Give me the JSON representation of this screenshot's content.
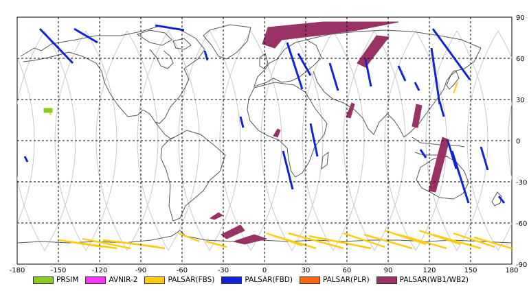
{
  "map": {
    "lon_ticks": [
      "-180",
      "-150",
      "-120",
      "-90",
      "-60",
      "-30",
      "0",
      "30",
      "60",
      "90",
      "120",
      "150",
      "180"
    ],
    "lat_ticks": [
      "90",
      "60",
      "30",
      "0",
      "-30",
      "-60",
      "-90"
    ],
    "lon_range": [
      -180,
      180
    ],
    "lat_range": [
      -90,
      90
    ],
    "colors": {
      "background": "#ffffff",
      "grid": "#000000",
      "coast": "#555555",
      "orbit": "#c8c8c8"
    }
  },
  "legend": [
    {
      "label": "PRSIM",
      "color": "#88cc22"
    },
    {
      "label": "AVNIR-2",
      "color": "#ff33ff"
    },
    {
      "label": "PALSAR(FBS)",
      "color": "#ffcc11"
    },
    {
      "label": "PALSAR(FBD)",
      "color": "#1122dd"
    },
    {
      "label": "PALSAR(PLR)",
      "color": "#ff6611"
    },
    {
      "label": "PALSAR(WB1/WB2)",
      "color": "#993366"
    }
  ]
}
